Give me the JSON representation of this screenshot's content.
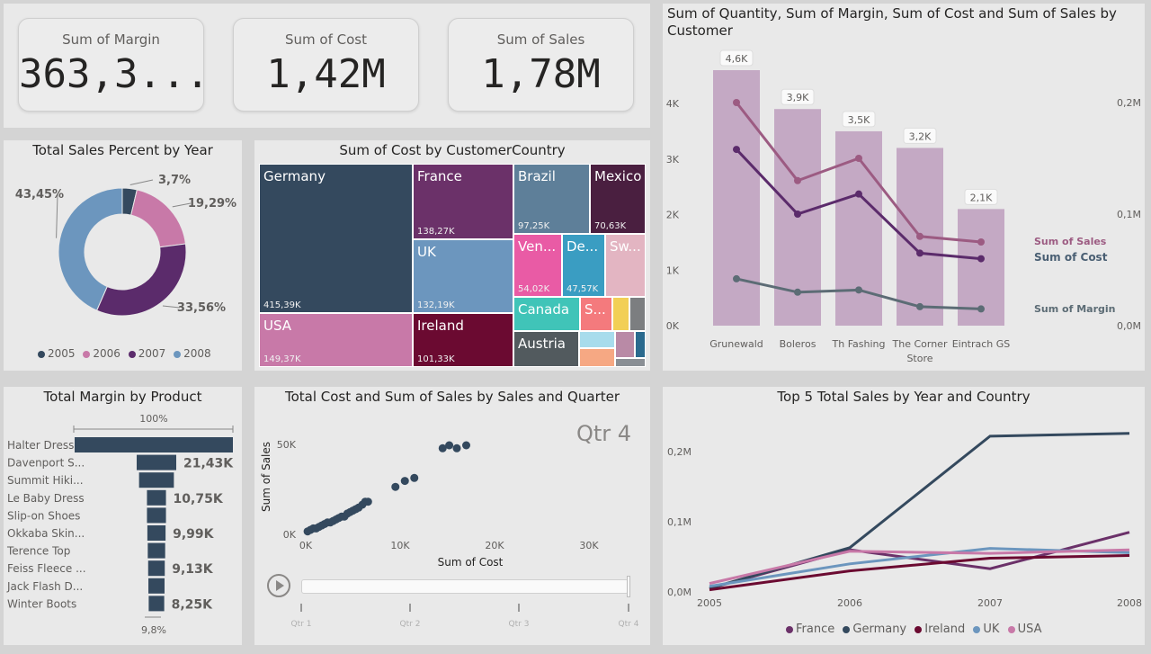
{
  "kpis": [
    {
      "label": "Sum of Margin",
      "value": "363,3..."
    },
    {
      "label": "Sum of Cost",
      "value": "1,42M"
    },
    {
      "label": "Sum of Sales",
      "value": "1,78M"
    }
  ],
  "donut": {
    "title": "Total Sales Percent by Year",
    "slices": [
      {
        "year": "2005",
        "pct": 3.7,
        "label": "3,7%",
        "color": "#34495e"
      },
      {
        "year": "2006",
        "pct": 19.29,
        "label": "19,29%",
        "color": "#c879a8"
      },
      {
        "year": "2007",
        "pct": 33.56,
        "label": "33,56%",
        "color": "#5b2b6b"
      },
      {
        "year": "2008",
        "pct": 43.45,
        "label": "43,45%",
        "color": "#6c96be"
      }
    ]
  },
  "treemap": {
    "title": "Sum of Cost by CustomerCountry",
    "tiles": [
      {
        "name": "Germany",
        "value": "415,39K",
        "color": "#34495e"
      },
      {
        "name": "USA",
        "value": "149,37K",
        "color": "#c879a8"
      },
      {
        "name": "France",
        "value": "138,27K",
        "color": "#6b3169"
      },
      {
        "name": "UK",
        "value": "132,19K",
        "color": "#6c96be"
      },
      {
        "name": "Ireland",
        "value": "101,33K",
        "color": "#6b0a31"
      },
      {
        "name": "Brazil",
        "value": "97,25K",
        "color": "#5e7f99"
      },
      {
        "name": "Mexico",
        "value": "70,63K",
        "color": "#4a1f40"
      },
      {
        "name": "Ven...",
        "value": "54,02K",
        "color": "#e95ba5"
      },
      {
        "name": "De...",
        "value": "47,57K",
        "color": "#3a9dc2"
      },
      {
        "name": "Sw...",
        "value": "",
        "color": "#e3b5c2"
      },
      {
        "name": "Canada",
        "value": "",
        "color": "#40c4b8"
      },
      {
        "name": "S...",
        "value": "",
        "color": "#f47a7d"
      },
      {
        "name": "Austria",
        "value": "",
        "color": "#525a5e"
      }
    ]
  },
  "combo": {
    "title": "Sum of Quantity, Sum of Margin, Sum of Cost and Sum of Sales by Customer",
    "customers": [
      "Grunewald",
      "Boleros",
      "Th Fashing",
      "The Corner Store",
      "Eintrach GS"
    ],
    "quantity": [
      4600,
      3900,
      3500,
      3200,
      2100
    ],
    "quantity_labels": [
      "4,6K",
      "3,9K",
      "3,5K",
      "3,2K",
      "2,1K"
    ],
    "sales": [
      0.2,
      0.13,
      0.15,
      0.08,
      0.075
    ],
    "cost": [
      0.158,
      0.1,
      0.118,
      0.065,
      0.06
    ],
    "margin": [
      0.042,
      0.03,
      0.032,
      0.017,
      0.015
    ],
    "left_ticks": [
      "0K",
      "1K",
      "2K",
      "3K",
      "4K"
    ],
    "right_ticks": [
      "0,0M",
      "0,1M",
      "0,2M"
    ],
    "series_labels": {
      "sales": "Sum of Sales",
      "cost": "Sum of Cost",
      "margin": "Sum of Margin"
    },
    "colors": {
      "bar": "#c4a9c4",
      "sales": "#9c5b82",
      "cost": "#5b2b6b",
      "margin": "#5c6c75"
    }
  },
  "funnel": {
    "title": "Total Margin by Product",
    "top_label": "100%",
    "bottom_label": "9,8%",
    "products": [
      {
        "name": "Halter Dress",
        "value": 100,
        "label": ""
      },
      {
        "name": "Davenport S...",
        "value": 25,
        "label": "21,43K"
      },
      {
        "name": "Summit Hiki...",
        "value": 22,
        "label": ""
      },
      {
        "name": "Le Baby Dress",
        "value": 12,
        "label": "10,75K"
      },
      {
        "name": "Slip-on Shoes",
        "value": 12,
        "label": ""
      },
      {
        "name": "Okkaba Skin...",
        "value": 11.5,
        "label": "9,99K"
      },
      {
        "name": "Terence Top",
        "value": 11,
        "label": ""
      },
      {
        "name": "Feiss Fleece ...",
        "value": 10.5,
        "label": "9,13K"
      },
      {
        "name": "Jack Flash D...",
        "value": 10.2,
        "label": ""
      },
      {
        "name": "Winter Boots",
        "value": 9.8,
        "label": "8,25K"
      }
    ],
    "color": "#34495e"
  },
  "scatter": {
    "title": "Total Cost and Sum of Sales by Sales and Quarter",
    "play_label": "Qtr 4",
    "xlabel": "Sum of Cost",
    "ylabel": "Sum of Sales",
    "x_ticks": [
      "0K",
      "10K",
      "20K",
      "30K"
    ],
    "y_ticks": [
      "0K",
      "50K"
    ],
    "timeline_labels": [
      "Qtr 1",
      "Qtr 2",
      "Qtr 3",
      "Qtr 4"
    ],
    "color": "#34495e",
    "points": [
      [
        0.2,
        1
      ],
      [
        0.5,
        1.5
      ],
      [
        0.8,
        2
      ],
      [
        1.1,
        2
      ],
      [
        1.4,
        2.5
      ],
      [
        1.7,
        3
      ],
      [
        2,
        3.5
      ],
      [
        2.3,
        4
      ],
      [
        2.6,
        4
      ],
      [
        2.9,
        4.5
      ],
      [
        3.2,
        5
      ],
      [
        3.5,
        5.5
      ],
      [
        3.8,
        6
      ],
      [
        4.1,
        6
      ],
      [
        4.4,
        7
      ],
      [
        4.7,
        7.5
      ],
      [
        5,
        8
      ],
      [
        5.3,
        8.5
      ],
      [
        5.6,
        9
      ],
      [
        6,
        10
      ],
      [
        6.3,
        11
      ],
      [
        6.6,
        11
      ],
      [
        9.5,
        16
      ],
      [
        10.5,
        18
      ],
      [
        11.5,
        19
      ],
      [
        14.5,
        29
      ],
      [
        15.2,
        30
      ],
      [
        16,
        29
      ],
      [
        17,
        30
      ]
    ]
  },
  "line": {
    "title": "Top 5 Total Sales by Year and Country",
    "years": [
      "2005",
      "2006",
      "2007",
      "2008"
    ],
    "y_ticks": [
      "0,0M",
      "0,1M",
      "0,2M"
    ],
    "series": [
      {
        "name": "France",
        "color": "#6b3169",
        "values": [
          0.005,
          0.06,
          0.033,
          0.085
        ]
      },
      {
        "name": "Germany",
        "color": "#34495e",
        "values": [
          0.005,
          0.063,
          0.222,
          0.226
        ]
      },
      {
        "name": "Ireland",
        "color": "#6b0a31",
        "values": [
          0.003,
          0.03,
          0.048,
          0.052
        ]
      },
      {
        "name": "UK",
        "color": "#6c96be",
        "values": [
          0.008,
          0.04,
          0.062,
          0.056
        ]
      },
      {
        "name": "USA",
        "color": "#c879a8",
        "values": [
          0.012,
          0.058,
          0.055,
          0.06
        ]
      }
    ]
  }
}
